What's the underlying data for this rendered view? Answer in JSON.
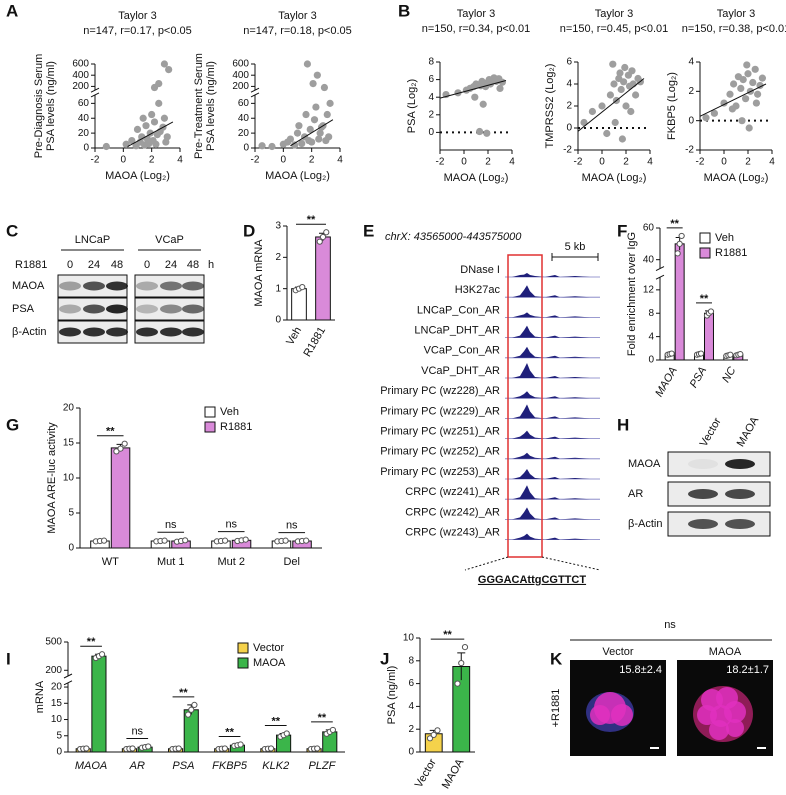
{
  "panel_labels": [
    "A",
    "B",
    "C",
    "D",
    "E",
    "F",
    "G",
    "H",
    "I",
    "J",
    "K"
  ],
  "chart_data": [
    {
      "type": "scatter",
      "title": "Taylor 3",
      "subtitle": "n=147, r=0.17, p<0.05",
      "ylabel": [
        "Pre-Diagnosis Serum",
        "PSA levels (ng/ml)"
      ],
      "xlabel": "MAOA (Log₂)",
      "x": [
        -1.2,
        0.2,
        0.6,
        0.9,
        1.0,
        1.2,
        1.3,
        1.5,
        1.6,
        1.7,
        1.8,
        1.9,
        2.0,
        2.1,
        2.2,
        2.3,
        2.4,
        2.5,
        2.6,
        2.8,
        2.9,
        3.0,
        3.1,
        3.2,
        2.5,
        2.9,
        2.2,
        1.4
      ],
      "values": [
        2,
        5,
        10,
        3,
        25,
        8,
        15,
        4,
        30,
        12,
        6,
        20,
        45,
        10,
        35,
        5,
        18,
        60,
        22,
        28,
        40,
        8,
        15,
        500,
        250,
        600,
        180,
        40
      ],
      "fit": {
        "x": [
          0.3,
          3.5
        ],
        "values": [
          2,
          35
        ]
      },
      "color": "#9e9e9e",
      "xlim": [
        -2,
        4
      ],
      "xticks": [
        -2,
        0,
        2,
        4
      ],
      "ylim": [
        0,
        600
      ],
      "ybreak": [
        70,
        150
      ],
      "yticks": [
        0,
        20,
        40,
        60,
        200,
        400,
        600
      ]
    },
    {
      "type": "scatter",
      "title": "Taylor 3",
      "subtitle": "n=147, r=0.18, p<0.05",
      "ylabel": [
        "Pre-Treatment Serum",
        "PSA levels (ng/ml)"
      ],
      "xlabel": "MAOA (Log₂)",
      "x": [
        -1.5,
        -0.8,
        0.0,
        0.3,
        0.5,
        0.8,
        1.0,
        1.1,
        1.3,
        1.5,
        1.6,
        1.8,
        1.9,
        2.0,
        2.2,
        2.3,
        2.5,
        2.6,
        2.8,
        3.0,
        3.1,
        3.3,
        2.4,
        2.9,
        1.7,
        2.1,
        2.7,
        3.2
      ],
      "values": [
        3,
        2,
        5,
        8,
        12,
        4,
        20,
        30,
        6,
        15,
        45,
        10,
        25,
        8,
        38,
        55,
        12,
        20,
        30,
        10,
        45,
        60,
        400,
        180,
        600,
        250,
        28,
        15
      ],
      "fit": {
        "x": [
          0.5,
          3.5
        ],
        "values": [
          3,
          38
        ]
      },
      "color": "#9e9e9e",
      "xlim": [
        -2,
        4
      ],
      "xticks": [
        -2,
        0,
        2,
        4
      ],
      "ylim": [
        0,
        600
      ],
      "ybreak": [
        70,
        150
      ],
      "yticks": [
        0,
        20,
        40,
        60,
        200,
        400,
        600
      ]
    },
    {
      "type": "scatter",
      "title": "Taylor 3",
      "subtitle": "n=150, r=0.34, p<0.01",
      "ylabel": "PSA (Log₂)",
      "xlabel": "MAOA (Log₂)",
      "x": [
        -1.5,
        -0.5,
        0.2,
        0.5,
        0.8,
        1.0,
        1.2,
        1.4,
        1.5,
        1.7,
        1.8,
        2.0,
        2.1,
        2.2,
        2.4,
        2.5,
        2.7,
        2.9,
        3.0,
        3.2,
        1.3,
        1.9,
        0.9,
        1.6
      ],
      "values": [
        4.3,
        4.5,
        4.8,
        5.0,
        5.2,
        5.5,
        5.4,
        5.3,
        5.8,
        5.6,
        5.2,
        5.7,
        6.0,
        5.5,
        5.9,
        6.2,
        5.8,
        6.1,
        5.0,
        5.7,
        0.1,
        -0.1,
        4.0,
        3.2
      ],
      "fit": {
        "x": [
          -2,
          3.5
        ],
        "values": [
          3.9,
          5.9
        ]
      },
      "hline": 0,
      "color": "#9e9e9e",
      "xlim": [
        -2,
        4
      ],
      "xticks": [
        -2,
        0,
        2,
        4
      ],
      "ylim": [
        -2,
        8
      ],
      "yticks": [
        0,
        2,
        4,
        6,
        8
      ]
    },
    {
      "type": "scatter",
      "title": "Taylor 3",
      "subtitle": "n=150, r=0.45, p<0.01",
      "ylabel": "TMPRSS2 (Log₂)",
      "xlabel": "MAOA (Log₂)",
      "x": [
        -1.5,
        -0.8,
        0.0,
        0.4,
        0.7,
        1.0,
        1.2,
        1.4,
        1.5,
        1.6,
        1.8,
        1.9,
        2.0,
        2.2,
        2.3,
        2.5,
        2.6,
        2.8,
        3.0,
        3.2,
        1.1,
        1.7,
        2.4,
        0.9
      ],
      "values": [
        0.5,
        1.5,
        2.0,
        -0.5,
        3.0,
        4.0,
        2.5,
        4.5,
        5.0,
        3.5,
        4.2,
        5.5,
        2.0,
        4.8,
        3.8,
        5.2,
        4.0,
        3.0,
        4.5,
        4.2,
        0.5,
        -1.0,
        1.5,
        5.8
      ],
      "fit": {
        "x": [
          -2,
          3.5
        ],
        "values": [
          -0.3,
          4.5
        ]
      },
      "hline": 0,
      "color": "#9e9e9e",
      "xlim": [
        -2,
        4
      ],
      "xticks": [
        -2,
        0,
        2,
        4
      ],
      "ylim": [
        -2,
        6
      ],
      "yticks": [
        -2,
        0,
        2,
        4,
        6
      ]
    },
    {
      "type": "scatter",
      "title": "Taylor 3",
      "subtitle": "n=150, r=0.38, p<0.01",
      "ylabel": "FKBP5 (Log₂)",
      "xlabel": "MAOA (Log₂)",
      "x": [
        -1.5,
        -0.8,
        0.0,
        0.5,
        0.8,
        1.0,
        1.2,
        1.4,
        1.6,
        1.8,
        2.0,
        2.2,
        2.4,
        2.6,
        2.8,
        3.0,
        3.2,
        1.5,
        2.1,
        0.7,
        2.7,
        1.9
      ],
      "values": [
        0.2,
        0.5,
        1.2,
        1.8,
        2.5,
        1.0,
        3.0,
        2.2,
        2.8,
        1.5,
        3.2,
        2.0,
        2.6,
        3.5,
        1.8,
        2.4,
        2.9,
        0.0,
        -0.5,
        0.8,
        1.2,
        3.8
      ],
      "fit": {
        "x": [
          -2,
          3.5
        ],
        "values": [
          0.3,
          2.5
        ]
      },
      "hline": 0,
      "color": "#9e9e9e",
      "xlim": [
        -2,
        4
      ],
      "xticks": [
        -2,
        0,
        2,
        4
      ],
      "ylim": [
        -2,
        4
      ],
      "yticks": [
        -2,
        0,
        2,
        4
      ]
    },
    {
      "type": "bar",
      "ylabel": "MAOA mRNA",
      "categories": [
        "Veh",
        "R1881"
      ],
      "values": [
        1.0,
        2.65
      ],
      "errors": [
        0.05,
        0.12
      ],
      "points": [
        [
          0.95,
          1.0,
          1.05
        ],
        [
          2.5,
          2.65,
          2.8
        ]
      ],
      "colors": [
        "#ffffff",
        "#d98ad9"
      ],
      "ylim": [
        0,
        3
      ],
      "yticks": [
        0,
        1,
        2,
        3
      ],
      "annotations": [
        "**"
      ]
    },
    {
      "type": "bar",
      "ylabel": "Fold enrichment over IgG",
      "categories": [
        "MAOA",
        "PSA",
        "NC"
      ],
      "series": [
        {
          "name": "Veh",
          "color": "#ffffff",
          "values": [
            1,
            1,
            0.8
          ],
          "errors": [
            0.1,
            0.1,
            0.1
          ],
          "points": [
            [
              0.9,
              1,
              1.1
            ],
            [
              0.9,
              1,
              1.1
            ],
            [
              0.7,
              0.8,
              0.9
            ]
          ]
        },
        {
          "name": "R1881",
          "color": "#d98ad9",
          "values": [
            50,
            8,
            0.9
          ],
          "errors": [
            4,
            0.4,
            0.1
          ],
          "points": [
            [
              44,
              50,
              55
            ],
            [
              7.6,
              8,
              8.3
            ],
            [
              0.8,
              0.9,
              1.0
            ]
          ]
        }
      ],
      "ylim": [
        0,
        60
      ],
      "ybreak": [
        14,
        35
      ],
      "yticks": [
        0,
        4,
        8,
        12,
        40,
        60
      ],
      "annotations": [
        "**",
        "**",
        null
      ]
    },
    {
      "type": "bar",
      "ylabel": "MAOA ARE-luc activity",
      "categories": [
        "WT",
        "Mut 1",
        "Mut 2",
        "Del"
      ],
      "series": [
        {
          "name": "Veh",
          "color": "#ffffff",
          "values": [
            1,
            1,
            1,
            1
          ],
          "errors": [
            0.05,
            0.05,
            0.05,
            0.05
          ],
          "points": [
            [
              0.95,
              1,
              1.05
            ],
            [
              0.95,
              1,
              1.05
            ],
            [
              0.95,
              1,
              1.05
            ],
            [
              0.95,
              1,
              1.05
            ]
          ]
        },
        {
          "name": "R1881",
          "color": "#d98ad9",
          "values": [
            14.3,
            1,
            1.1,
            1
          ],
          "errors": [
            0.5,
            0.1,
            0.1,
            0.05
          ],
          "points": [
            [
              13.8,
              14.2,
              14.9
            ],
            [
              0.9,
              1,
              1.1
            ],
            [
              1.0,
              1.1,
              1.2
            ],
            [
              0.95,
              1,
              1.05
            ]
          ]
        }
      ],
      "ylim": [
        0,
        20
      ],
      "yticks": [
        0,
        5,
        10,
        15,
        20
      ],
      "annotations": [
        "**",
        "ns",
        "ns",
        "ns"
      ]
    },
    {
      "type": "bar",
      "ylabel": "mRNA",
      "categories": [
        "MAOA",
        "AR",
        "PSA",
        "FKBP5",
        "KLK2",
        "PLZF"
      ],
      "series": [
        {
          "name": "Vector",
          "color": "#f5d24b",
          "values": [
            1,
            1,
            1,
            1,
            1,
            1
          ],
          "errors": [
            0.1,
            0.1,
            0.1,
            0.1,
            0.1,
            0.1
          ],
          "points": [
            [
              0.9,
              1,
              1.1
            ],
            [
              0.9,
              1,
              1.1
            ],
            [
              0.9,
              1,
              1.1
            ],
            [
              0.9,
              1,
              1.1
            ],
            [
              0.9,
              1,
              1.1
            ],
            [
              0.9,
              1,
              1.1
            ]
          ]
        },
        {
          "name": "MAOA",
          "color": "#3bb54a",
          "values": [
            350,
            1.5,
            13,
            2.1,
            5.2,
            6.2
          ],
          "errors": [
            20,
            0.2,
            1.5,
            0.2,
            0.5,
            0.6
          ],
          "points": [
            [
              330,
              350,
              370
            ],
            [
              1.3,
              1.5,
              1.7
            ],
            [
              11.5,
              13,
              14.5
            ],
            [
              1.9,
              2.1,
              2.3
            ],
            [
              4.7,
              5.2,
              5.7
            ],
            [
              5.6,
              6.2,
              6.8
            ]
          ]
        }
      ],
      "ylim": [
        0,
        500
      ],
      "ybreak": [
        21,
        150
      ],
      "yticks": [
        0,
        5,
        10,
        15,
        20,
        200,
        500
      ],
      "annotations": [
        "**",
        "ns",
        "**",
        "**",
        "**",
        "**"
      ]
    },
    {
      "type": "bar",
      "ylabel": "PSA (ng/ml)",
      "categories": [
        "Vector",
        "MAOA"
      ],
      "values": [
        1.6,
        7.5
      ],
      "errors": [
        0.3,
        1.2
      ],
      "points": [
        [
          1.2,
          1.5,
          1.9
        ],
        [
          6.0,
          7.8,
          9.2
        ]
      ],
      "colors": [
        "#f5d24b",
        "#3bb54a"
      ],
      "ylim": [
        0,
        10
      ],
      "yticks": [
        0,
        2,
        4,
        6,
        8,
        10
      ],
      "annotations": [
        "**"
      ]
    }
  ],
  "blot_c": {
    "cell_lines": [
      "LNCaP",
      "VCaP"
    ],
    "treatment": "R1881",
    "timepoints": [
      0,
      24,
      48,
      0,
      24,
      48
    ],
    "time_unit": "h",
    "rows": [
      "MAOA",
      "PSA",
      "β-Actin"
    ]
  },
  "tracks_e": {
    "title": "chrX: 43565000-443575000",
    "scale": "5 kb",
    "tracks": [
      "DNase I",
      "H3K27ac",
      "LNCaP_Con_AR",
      "LNCaP_DHT_AR",
      "VCaP_Con_AR",
      "VCaP_DHT_AR",
      "Primary PC (wz228)_AR",
      "Primary PC (wz229)_AR",
      "Primary PC (wz251)_AR",
      "Primary PC (wz252)_AR",
      "Primary PC (wz253)_AR",
      "CRPC (wz241)_AR",
      "CRPC (wz242)_AR",
      "CRPC (wz243)_AR"
    ],
    "motif": "GGGACAttgCGTTCT"
  },
  "blot_h": {
    "columns": [
      "Vector",
      "MAOA"
    ],
    "rows": [
      "MAOA",
      "AR",
      "β-Actin"
    ]
  },
  "images_k": {
    "title": "ns",
    "columns": [
      "Vector",
      "MAOA"
    ],
    "quantification": [
      "15.8±2.4",
      "18.2±1.7"
    ],
    "row_label": "+R1881"
  }
}
